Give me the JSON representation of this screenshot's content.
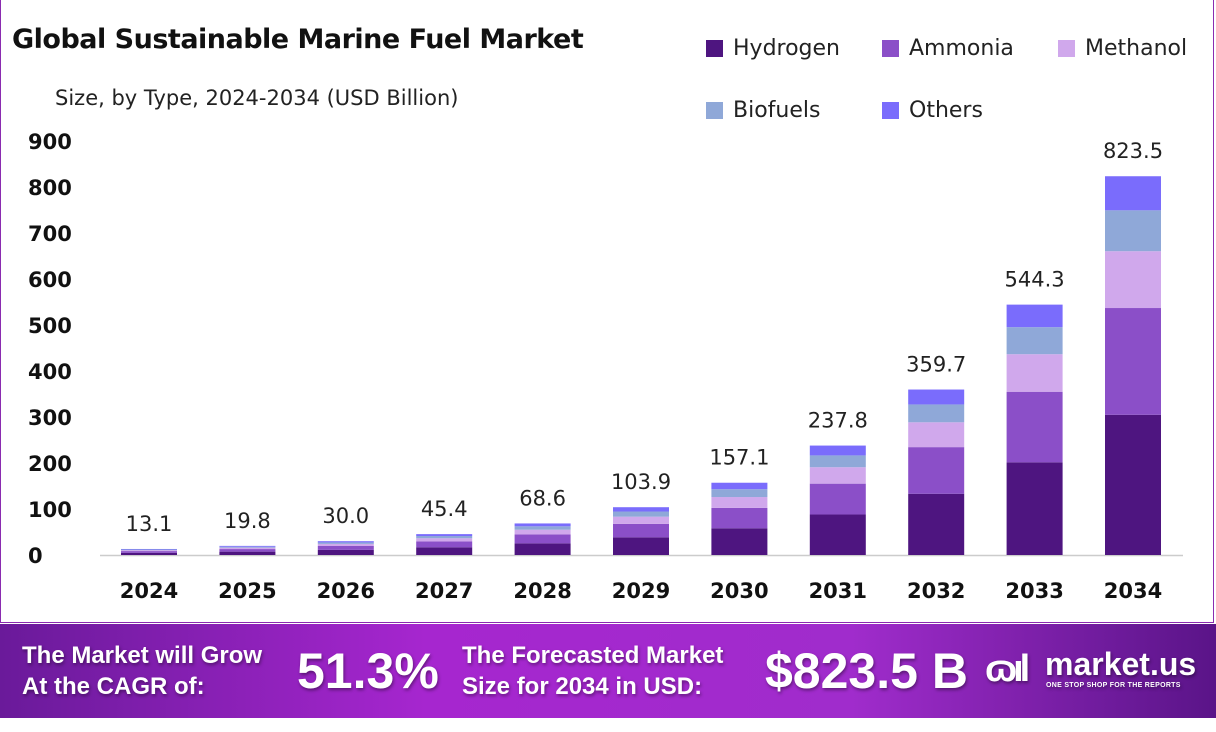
{
  "chart_data": {
    "type": "bar",
    "stacked": true,
    "title": "Global Sustainable Marine Fuel Market",
    "subtitle": "Size, by Type, 2024-2034 (USD Billion)",
    "categories": [
      "2024",
      "2025",
      "2026",
      "2027",
      "2028",
      "2029",
      "2030",
      "2031",
      "2032",
      "2033",
      "2034"
    ],
    "totals": [
      "13.1",
      "19.8",
      "30.0",
      "45.4",
      "68.6",
      "103.9",
      "157.1",
      "237.8",
      "359.7",
      "544.3",
      "823.5"
    ],
    "series": [
      {
        "name": "Hydrogen",
        "color": "#4e1580",
        "values": [
          4.8,
          7.3,
          11.1,
          16.8,
          25.4,
          38.4,
          58.1,
          88.0,
          133.1,
          201.4,
          304.7
        ]
      },
      {
        "name": "Ammonia",
        "color": "#8b4fc8",
        "values": [
          3.7,
          5.6,
          8.5,
          12.8,
          19.3,
          29.3,
          44.3,
          67.1,
          101.4,
          153.5,
          232.2
        ]
      },
      {
        "name": "Methanol",
        "color": "#d0a8ec",
        "values": [
          2.0,
          3.0,
          4.5,
          6.8,
          10.3,
          15.6,
          23.6,
          35.7,
          54.0,
          81.6,
          123.5
        ]
      },
      {
        "name": "Biofuels",
        "color": "#8fa8d8",
        "values": [
          1.4,
          2.1,
          3.2,
          4.9,
          7.4,
          11.2,
          17.0,
          25.7,
          38.8,
          58.8,
          88.9
        ]
      },
      {
        "name": "Others",
        "color": "#7a6cfc",
        "values": [
          1.2,
          1.8,
          2.7,
          4.1,
          6.2,
          9.4,
          14.1,
          21.4,
          32.4,
          49.0,
          74.1
        ]
      }
    ],
    "yticks": [
      "0",
      "100",
      "200",
      "300",
      "400",
      "500",
      "600",
      "700",
      "800",
      "900"
    ],
    "ylim": [
      0,
      900
    ],
    "grid": false,
    "legend_position": "top-right"
  },
  "banner": {
    "cagr_label_1": "The Market will Grow",
    "cagr_label_2": "At the CAGR of:",
    "cagr_value": "51.3%",
    "forecast_label_1": "The Forecasted Market",
    "forecast_label_2": "Size for 2034 in USD:",
    "forecast_value": "$823.5 B",
    "brand": "market.us",
    "tagline": "ONE STOP SHOP FOR THE REPORTS"
  }
}
